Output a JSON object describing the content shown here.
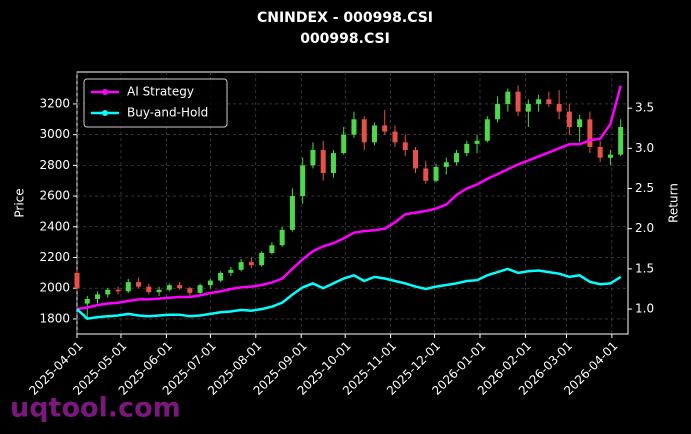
{
  "chart_data": {
    "type": "candlestick",
    "title": "CNINDEX - 000998.CSI",
    "subtitle": "000998.CSI",
    "ylabel": "Price",
    "y2label": "Return",
    "watermark": "uqtool.com",
    "grid": true,
    "legend": "upper left",
    "up_color": "#4cd94c",
    "down_color": "#e8504a",
    "x": [
      "2025-04-01",
      "2025-04-08",
      "2025-04-15",
      "2025-04-22",
      "2025-04-29",
      "2025-05-06",
      "2025-05-13",
      "2025-05-20",
      "2025-05-27",
      "2025-06-03",
      "2025-06-10",
      "2025-06-17",
      "2025-06-24",
      "2025-07-01",
      "2025-07-08",
      "2025-07-15",
      "2025-07-22",
      "2025-07-29",
      "2025-08-05",
      "2025-08-12",
      "2025-08-19",
      "2025-08-26",
      "2025-09-02",
      "2025-09-09",
      "2025-09-16",
      "2025-09-23",
      "2025-09-30",
      "2025-10-07",
      "2025-10-14",
      "2025-10-21",
      "2025-10-28",
      "2025-11-04",
      "2025-11-11",
      "2025-11-18",
      "2025-11-25",
      "2025-12-02",
      "2025-12-09",
      "2025-12-16",
      "2025-12-23",
      "2025-12-30",
      "2026-01-06",
      "2026-01-13",
      "2026-01-20",
      "2026-01-27",
      "2026-02-03",
      "2026-02-10",
      "2026-02-17",
      "2026-02-24",
      "2026-03-03",
      "2026-03-10",
      "2026-03-17",
      "2026-03-24",
      "2026-03-31",
      "2026-04-07"
    ],
    "open": [
      2100,
      1900,
      1930,
      1960,
      1990,
      1980,
      2040,
      2010,
      1975,
      1990,
      2020,
      2000,
      1970,
      2020,
      2050,
      2100,
      2120,
      2170,
      2150,
      2230,
      2280,
      2380,
      2600,
      2800,
      2900,
      2750,
      2880,
      3000,
      3100,
      2950,
      3060,
      3020,
      2950,
      2900,
      2780,
      2700,
      2790,
      2820,
      2880,
      2940,
      2960,
      3100,
      3200,
      3280,
      3150,
      3200,
      3230,
      3200,
      3150,
      3050,
      3100,
      2920,
      2850,
      2870
    ],
    "high": [
      2120,
      1950,
      1980,
      2000,
      2010,
      2060,
      2070,
      2030,
      2010,
      2030,
      2040,
      2010,
      2030,
      2060,
      2110,
      2140,
      2190,
      2200,
      2240,
      2300,
      2400,
      2650,
      2850,
      2950,
      2960,
      2900,
      3050,
      3150,
      3120,
      3080,
      3160,
      3060,
      3000,
      2920,
      2830,
      2810,
      2850,
      2900,
      2960,
      3000,
      3120,
      3250,
      3300,
      3320,
      3230,
      3260,
      3280,
      3290,
      3200,
      3130,
      3150,
      2960,
      2900,
      3100
    ],
    "low": [
      1980,
      1800,
      1900,
      1940,
      1960,
      1970,
      2000,
      1960,
      1950,
      1980,
      1990,
      1950,
      1960,
      2000,
      2040,
      2080,
      2110,
      2130,
      2140,
      2220,
      2270,
      2370,
      2550,
      2780,
      2700,
      2720,
      2870,
      2980,
      2900,
      2930,
      3000,
      2920,
      2860,
      2750,
      2680,
      2690,
      2740,
      2800,
      2860,
      2880,
      2950,
      3080,
      3150,
      3120,
      3050,
      3150,
      3180,
      3100,
      3000,
      2950,
      2880,
      2820,
      2800,
      2860
    ],
    "close": [
      2000,
      1930,
      1960,
      1990,
      1980,
      2040,
      2010,
      1975,
      1990,
      2020,
      2000,
      1970,
      2020,
      2050,
      2100,
      2120,
      2170,
      2150,
      2230,
      2280,
      2380,
      2600,
      2800,
      2900,
      2750,
      2880,
      3000,
      3100,
      2950,
      3060,
      3020,
      2950,
      2900,
      2780,
      2700,
      2790,
      2820,
      2880,
      2940,
      2960,
      3100,
      3200,
      3280,
      3150,
      3200,
      3230,
      3200,
      3150,
      3050,
      3100,
      2920,
      2850,
      2870,
      3050
    ],
    "series": [
      {
        "name": "AI Strategy",
        "color": "#ff00ff",
        "axis": "y2",
        "values": [
          1.0,
          1.02,
          1.05,
          1.07,
          1.08,
          1.1,
          1.12,
          1.12,
          1.13,
          1.14,
          1.15,
          1.15,
          1.17,
          1.2,
          1.22,
          1.25,
          1.27,
          1.28,
          1.3,
          1.33,
          1.38,
          1.5,
          1.62,
          1.72,
          1.78,
          1.82,
          1.88,
          1.95,
          1.97,
          1.98,
          2.0,
          2.08,
          2.18,
          2.2,
          2.22,
          2.25,
          2.3,
          2.42,
          2.5,
          2.55,
          2.62,
          2.68,
          2.74,
          2.8,
          2.85,
          2.9,
          2.95,
          3.0,
          3.05,
          3.05,
          3.1,
          3.12,
          3.3,
          3.78
        ]
      },
      {
        "name": "Buy-and-Hold",
        "color": "#00ffff",
        "axis": "y2",
        "values": [
          1.0,
          0.88,
          0.9,
          0.91,
          0.92,
          0.94,
          0.92,
          0.91,
          0.92,
          0.93,
          0.93,
          0.91,
          0.92,
          0.94,
          0.96,
          0.97,
          0.99,
          0.98,
          1.0,
          1.03,
          1.08,
          1.18,
          1.27,
          1.32,
          1.26,
          1.32,
          1.38,
          1.42,
          1.35,
          1.4,
          1.38,
          1.35,
          1.32,
          1.28,
          1.25,
          1.28,
          1.3,
          1.32,
          1.35,
          1.36,
          1.42,
          1.46,
          1.5,
          1.45,
          1.47,
          1.48,
          1.46,
          1.44,
          1.4,
          1.42,
          1.34,
          1.31,
          1.32,
          1.4
        ]
      }
    ],
    "xlim": [
      "2025-04-01",
      "2026-04-12"
    ],
    "xticks": [
      "2025-04-01",
      "2025-05-01",
      "2025-06-01",
      "2025-07-01",
      "2025-08-01",
      "2025-09-01",
      "2025-10-01",
      "2025-11-01",
      "2025-12-01",
      "2026-01-01",
      "2026-02-01",
      "2026-03-01",
      "2026-04-01"
    ],
    "ylim": [
      1702,
      3408
    ],
    "yticks": [
      1800,
      2000,
      2200,
      2400,
      2600,
      2800,
      3000,
      3200
    ],
    "y2lim": [
      0.69,
      3.95
    ],
    "y2ticks": [
      {
        "value": 1,
        "label": "1.0"
      },
      1.5,
      {
        "value": 2,
        "label": "2.0"
      },
      2.5,
      {
        "value": 3,
        "label": "3.0"
      },
      3.5
    ]
  }
}
